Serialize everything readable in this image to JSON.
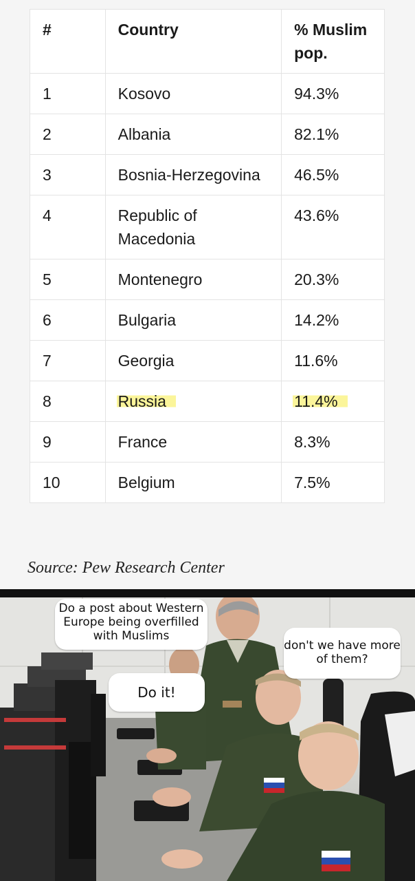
{
  "table": {
    "headers": {
      "rank": "#",
      "country": "Country",
      "pct": "% Muslim pop."
    },
    "rows": [
      {
        "rank": "1",
        "country": "Kosovo",
        "pct": "94.3%"
      },
      {
        "rank": "2",
        "country": "Albania",
        "pct": "82.1%"
      },
      {
        "rank": "3",
        "country": "Bosnia-Herzegovina",
        "pct": "46.5%"
      },
      {
        "rank": "4",
        "country": "Republic of Macedonia",
        "pct": "43.6%"
      },
      {
        "rank": "5",
        "country": "Montenegro",
        "pct": "20.3%"
      },
      {
        "rank": "6",
        "country": "Bulgaria",
        "pct": "14.2%"
      },
      {
        "rank": "7",
        "country": "Georgia",
        "pct": "11.6%"
      },
      {
        "rank": "8",
        "country": "Russia",
        "pct": "11.4%"
      },
      {
        "rank": "9",
        "country": "France",
        "pct": "8.3%"
      },
      {
        "rank": "10",
        "country": "Belgium",
        "pct": "7.5%"
      }
    ],
    "highlight_color": "#fbf59a"
  },
  "source": "Source: Pew Research Center",
  "meme": {
    "bubble_general": "Do a post about Western Europe being overfilled with Muslims",
    "bubble_do_it": "Do it!",
    "bubble_question": "don't we have more of them?"
  }
}
